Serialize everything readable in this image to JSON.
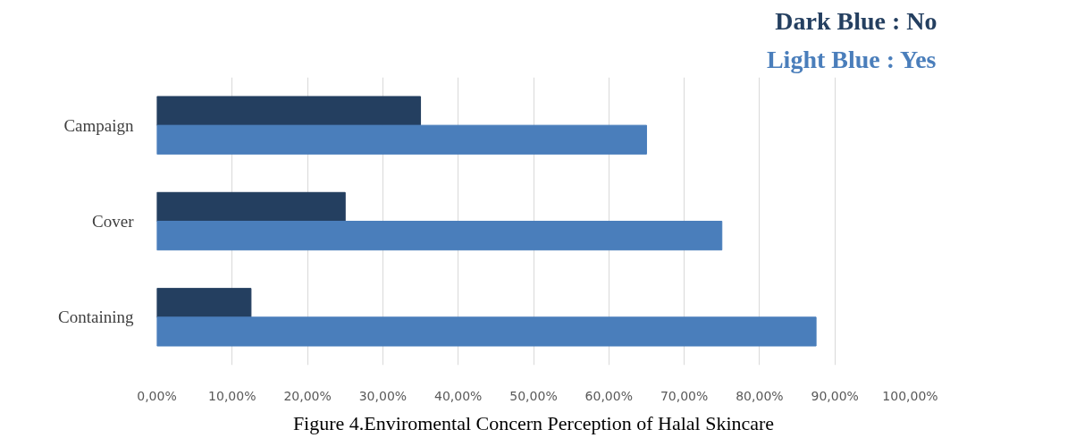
{
  "chart_data": {
    "type": "bar",
    "orientation": "horizontal",
    "categories": [
      "Campaign",
      "Cover",
      "Containing"
    ],
    "series": [
      {
        "name": "Dark Blue : No",
        "color": "#243f60",
        "values": [
          35,
          25,
          12.5
        ]
      },
      {
        "name": "Light Blue : Yes",
        "color": "#4a7ebb",
        "values": [
          65,
          75,
          87.5
        ]
      }
    ],
    "xlim": [
      0,
      100
    ],
    "xticks": [
      {
        "value": 0,
        "label": "0,00%"
      },
      {
        "value": 10,
        "label": "10,00%"
      },
      {
        "value": 20,
        "label": "20,00%"
      },
      {
        "value": 30,
        "label": "30,00%"
      },
      {
        "value": 40,
        "label": "40,00%"
      },
      {
        "value": 50,
        "label": "50,00%"
      },
      {
        "value": 60,
        "label": "60,00%"
      },
      {
        "value": 70,
        "label": "70,00%"
      },
      {
        "value": 80,
        "label": "80,00%"
      },
      {
        "value": 90,
        "label": "90,00%"
      },
      {
        "value": 100,
        "label": "100,00%"
      }
    ],
    "grid": "x",
    "annotations": [
      "Figure 4.Enviromental Concern Perception of Halal Skincare"
    ]
  }
}
